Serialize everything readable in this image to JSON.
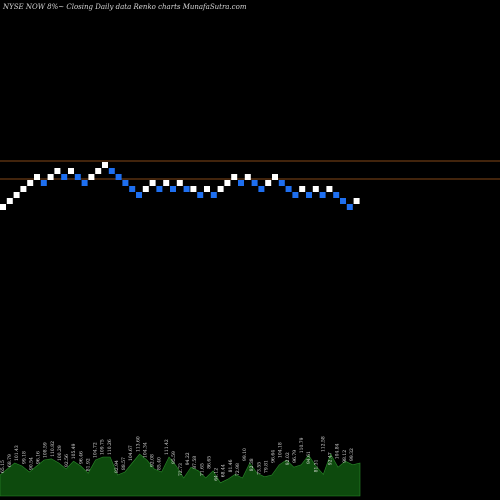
{
  "title": "NYSE NOW 8%~ Closing Daily data Renko charts MunafaSutra.com",
  "colors": {
    "up": "#ffffff",
    "down": "#1e6ff0",
    "background": "#000000",
    "hline": "#b06020",
    "volume": "#0d4a0d",
    "volume_edge": "#2a8a2a"
  },
  "chart_data": {
    "type": "renko",
    "title": "NYSE NOW 8%~ Closing Daily data Renko charts MunafaSutra.com",
    "bricks": [
      {
        "dir": "up",
        "level": 0
      },
      {
        "dir": "up",
        "level": 1
      },
      {
        "dir": "up",
        "level": 2
      },
      {
        "dir": "up",
        "level": 3
      },
      {
        "dir": "up",
        "level": 4
      },
      {
        "dir": "up",
        "level": 5
      },
      {
        "dir": "down",
        "level": 4
      },
      {
        "dir": "up",
        "level": 5
      },
      {
        "dir": "up",
        "level": 6
      },
      {
        "dir": "down",
        "level": 5
      },
      {
        "dir": "up",
        "level": 6
      },
      {
        "dir": "down",
        "level": 5
      },
      {
        "dir": "down",
        "level": 4
      },
      {
        "dir": "up",
        "level": 5
      },
      {
        "dir": "up",
        "level": 6
      },
      {
        "dir": "up",
        "level": 7
      },
      {
        "dir": "down",
        "level": 6
      },
      {
        "dir": "down",
        "level": 5
      },
      {
        "dir": "down",
        "level": 4
      },
      {
        "dir": "down",
        "level": 3
      },
      {
        "dir": "down",
        "level": 2
      },
      {
        "dir": "up",
        "level": 3
      },
      {
        "dir": "up",
        "level": 4
      },
      {
        "dir": "down",
        "level": 3
      },
      {
        "dir": "up",
        "level": 4
      },
      {
        "dir": "down",
        "level": 3
      },
      {
        "dir": "up",
        "level": 4
      },
      {
        "dir": "down",
        "level": 3
      },
      {
        "dir": "up",
        "level": 3
      },
      {
        "dir": "down",
        "level": 2
      },
      {
        "dir": "up",
        "level": 3
      },
      {
        "dir": "down",
        "level": 2
      },
      {
        "dir": "up",
        "level": 3
      },
      {
        "dir": "up",
        "level": 4
      },
      {
        "dir": "up",
        "level": 5
      },
      {
        "dir": "down",
        "level": 4
      },
      {
        "dir": "up",
        "level": 5
      },
      {
        "dir": "down",
        "level": 4
      },
      {
        "dir": "down",
        "level": 3
      },
      {
        "dir": "up",
        "level": 4
      },
      {
        "dir": "up",
        "level": 5
      },
      {
        "dir": "down",
        "level": 4
      },
      {
        "dir": "down",
        "level": 3
      },
      {
        "dir": "down",
        "level": 2
      },
      {
        "dir": "up",
        "level": 3
      },
      {
        "dir": "down",
        "level": 2
      },
      {
        "dir": "up",
        "level": 3
      },
      {
        "dir": "down",
        "level": 2
      },
      {
        "dir": "up",
        "level": 3
      },
      {
        "dir": "down",
        "level": 2
      },
      {
        "dir": "down",
        "level": 1
      },
      {
        "dir": "down",
        "level": 0
      },
      {
        "dir": "up",
        "level": 1
      }
    ],
    "hlines": [
      7,
      4
    ],
    "volume_labels": [
      "65.15",
      "68.79",
      "101.43",
      "99.18",
      "90.54",
      "96.16",
      "108.59",
      "110.82",
      "100.29",
      "92.56",
      "105.49",
      "96.46",
      "81.92",
      "104.72",
      "109.75",
      "110.26",
      "82.94",
      "88.57",
      "104.67",
      "113.60",
      "104.34",
      "92.08",
      "85.40",
      "111.42",
      "95.59",
      "72.73",
      "94.22",
      "87.58",
      "71.65",
      "86.65",
      "64.12",
      "68.44",
      "81.46",
      "72.98",
      "99.10",
      "82.38",
      "73.55",
      "79.81",
      "96.64",
      "104.18",
      "92.02",
      "96.79",
      "110.79",
      "94.61",
      "81.31",
      "112.58",
      "92.47",
      "104.84",
      "98.12",
      "99.32"
    ],
    "volume_values": [
      0.35,
      0.45,
      0.55,
      0.5,
      0.4,
      0.5,
      0.6,
      0.62,
      0.55,
      0.45,
      0.58,
      0.5,
      0.38,
      0.6,
      0.65,
      0.65,
      0.35,
      0.4,
      0.55,
      0.7,
      0.6,
      0.45,
      0.4,
      0.65,
      0.5,
      0.3,
      0.48,
      0.42,
      0.3,
      0.42,
      0.22,
      0.28,
      0.36,
      0.3,
      0.55,
      0.38,
      0.32,
      0.35,
      0.52,
      0.6,
      0.48,
      0.52,
      0.68,
      0.5,
      0.36,
      0.7,
      0.48,
      0.58,
      0.52,
      0.55
    ]
  }
}
